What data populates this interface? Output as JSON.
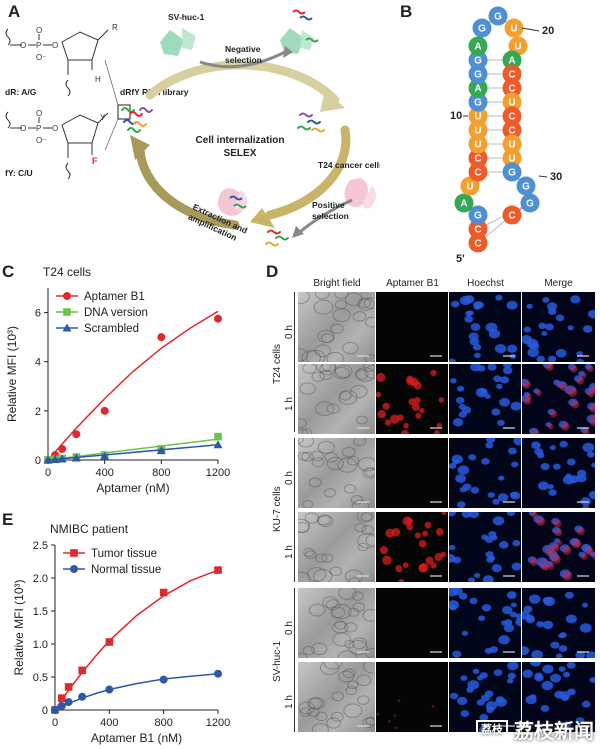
{
  "panels": {
    "A": {
      "letter": "A",
      "dR_label": "dR: A/G",
      "fY_label": "fY: C/U",
      "R": "R",
      "H": "H",
      "Y": "Y",
      "F": "F",
      "library": "dRfY RNA library",
      "sv_huc": "SV-huc-1",
      "negative": "Negative",
      "selection1": "selection",
      "center1": "Cell internalization",
      "center2": "SELEX",
      "t24": "T24 cancer cells",
      "positive": "Positive",
      "selection2": "selection",
      "extraction1": "Extraction and",
      "extraction2": "amplification"
    },
    "B": {
      "letter": "B",
      "sequence": [
        "C",
        "C",
        "G",
        "A",
        "U",
        "C",
        "C",
        "U",
        "U",
        "U",
        "G",
        "A",
        "G",
        "G",
        "A",
        "G",
        "G",
        "U",
        "U",
        "A",
        "C",
        "C",
        "U",
        "C",
        "C",
        "U",
        "U",
        "G",
        "G",
        "G",
        "C"
      ],
      "label_20": "20",
      "label_10": "10",
      "label_30": "30",
      "label_5p": "5'",
      "colors": {
        "A": "#35a853",
        "G": "#4f8fd4",
        "C": "#f05a28",
        "U": "#f4a02e"
      }
    },
    "C": {
      "letter": "C"
    },
    "D": {
      "letter": "D",
      "columns": [
        "Bright field",
        "Aptamer B1",
        "Hoechst",
        "Merge"
      ],
      "cell_lines": [
        "T24 cells",
        "KU-7 cells",
        "SV-huc-1"
      ],
      "times": [
        "0 h",
        "1 h"
      ]
    },
    "E": {
      "letter": "E"
    }
  },
  "chart_data": [
    {
      "panel": "C",
      "type": "scatter",
      "title": "T24 cells",
      "xlabel": "Aptamer (nM)",
      "ylabel": "Relative MFI (10³)",
      "xlim": [
        0,
        1200
      ],
      "ylim": [
        0,
        7
      ],
      "xticks": [
        0,
        400,
        800,
        1200
      ],
      "yticks": [
        0,
        2,
        4,
        6
      ],
      "legend": "top-left",
      "series": [
        {
          "name": "Aptamer B1",
          "marker": "circle",
          "color": "#e0292e",
          "x": [
            0,
            50,
            100,
            200,
            400,
            800,
            1200
          ],
          "y": [
            0,
            0.2,
            0.45,
            1.05,
            2.0,
            5.0,
            5.75
          ],
          "fit": [
            [
              0,
              0
            ],
            [
              100,
              0.65
            ],
            [
              200,
              1.3
            ],
            [
              300,
              1.9
            ],
            [
              400,
              2.5
            ],
            [
              600,
              3.6
            ],
            [
              800,
              4.55
            ],
            [
              1000,
              5.35
            ],
            [
              1200,
              6.05
            ]
          ]
        },
        {
          "name": "DNA version",
          "marker": "square",
          "color": "#6cc24a",
          "x": [
            0,
            50,
            100,
            200,
            400,
            800,
            1200
          ],
          "y": [
            0,
            0.03,
            0.06,
            0.12,
            0.2,
            0.45,
            0.95
          ],
          "fit": [
            [
              0,
              0
            ],
            [
              1200,
              0.85
            ]
          ]
        },
        {
          "name": "Scrambled",
          "marker": "triangle",
          "color": "#2d58a8",
          "x": [
            0,
            50,
            100,
            200,
            400,
            800,
            1200
          ],
          "y": [
            0,
            0.02,
            0.04,
            0.08,
            0.15,
            0.38,
            0.62
          ],
          "fit": [
            [
              0,
              0
            ],
            [
              1200,
              0.62
            ]
          ]
        }
      ]
    },
    {
      "panel": "E",
      "type": "scatter",
      "title": "NMIBC patient",
      "xlabel": "Aptamer B1 (nM)",
      "ylabel": "Relative MFI (10³)",
      "xlim": [
        0,
        1200
      ],
      "ylim": [
        0,
        2.5
      ],
      "xticks": [
        0,
        400,
        800,
        1200
      ],
      "yticks": [
        0,
        0.5,
        1.0,
        1.5,
        2.0,
        2.5
      ],
      "ytick_labels": [
        "0",
        "0.5",
        "1.0",
        "1.5",
        "2.0",
        "2.5"
      ],
      "legend": "top-left",
      "series": [
        {
          "name": "Tumor tissue",
          "marker": "square",
          "color": "#e0292e",
          "x": [
            0,
            50,
            100,
            200,
            400,
            800,
            1200
          ],
          "y": [
            0,
            0.18,
            0.35,
            0.6,
            1.03,
            1.78,
            2.12
          ],
          "fit": [
            [
              0,
              0
            ],
            [
              100,
              0.3
            ],
            [
              200,
              0.57
            ],
            [
              300,
              0.82
            ],
            [
              400,
              1.05
            ],
            [
              600,
              1.43
            ],
            [
              800,
              1.73
            ],
            [
              1000,
              1.96
            ],
            [
              1200,
              2.12
            ]
          ]
        },
        {
          "name": "Normal tissue",
          "marker": "circle",
          "color": "#2d58a8",
          "x": [
            0,
            50,
            100,
            200,
            400,
            800,
            1200
          ],
          "y": [
            0,
            0.06,
            0.12,
            0.2,
            0.31,
            0.46,
            0.55
          ],
          "fit": [
            [
              0,
              0
            ],
            [
              100,
              0.1
            ],
            [
              200,
              0.18
            ],
            [
              300,
              0.25
            ],
            [
              400,
              0.31
            ],
            [
              600,
              0.4
            ],
            [
              800,
              0.47
            ],
            [
              1000,
              0.51
            ],
            [
              1200,
              0.55
            ]
          ]
        }
      ]
    }
  ],
  "watermark": {
    "logo": "荔枝",
    "text": "荔枝新闻"
  }
}
